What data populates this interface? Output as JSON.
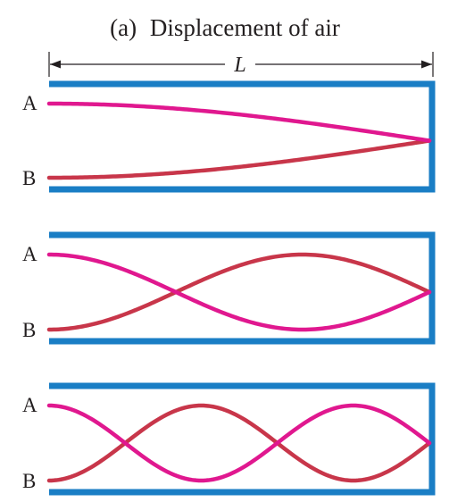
{
  "title": {
    "panel_letter": "(a)",
    "text": "Displacement of air"
  },
  "length_label": "L",
  "end_labels": {
    "top": "A",
    "bottom": "B"
  },
  "colors": {
    "tube": "#1a7ec5",
    "curve_a": "#e0188f",
    "curve_b": "#c8364a",
    "ink": "#231f20"
  },
  "panels": [
    {
      "mode": "fundamental",
      "quarter_wavelengths": 1
    },
    {
      "mode": "third-harmonic",
      "quarter_wavelengths": 3
    },
    {
      "mode": "fifth-harmonic",
      "quarter_wavelengths": 5
    }
  ]
}
